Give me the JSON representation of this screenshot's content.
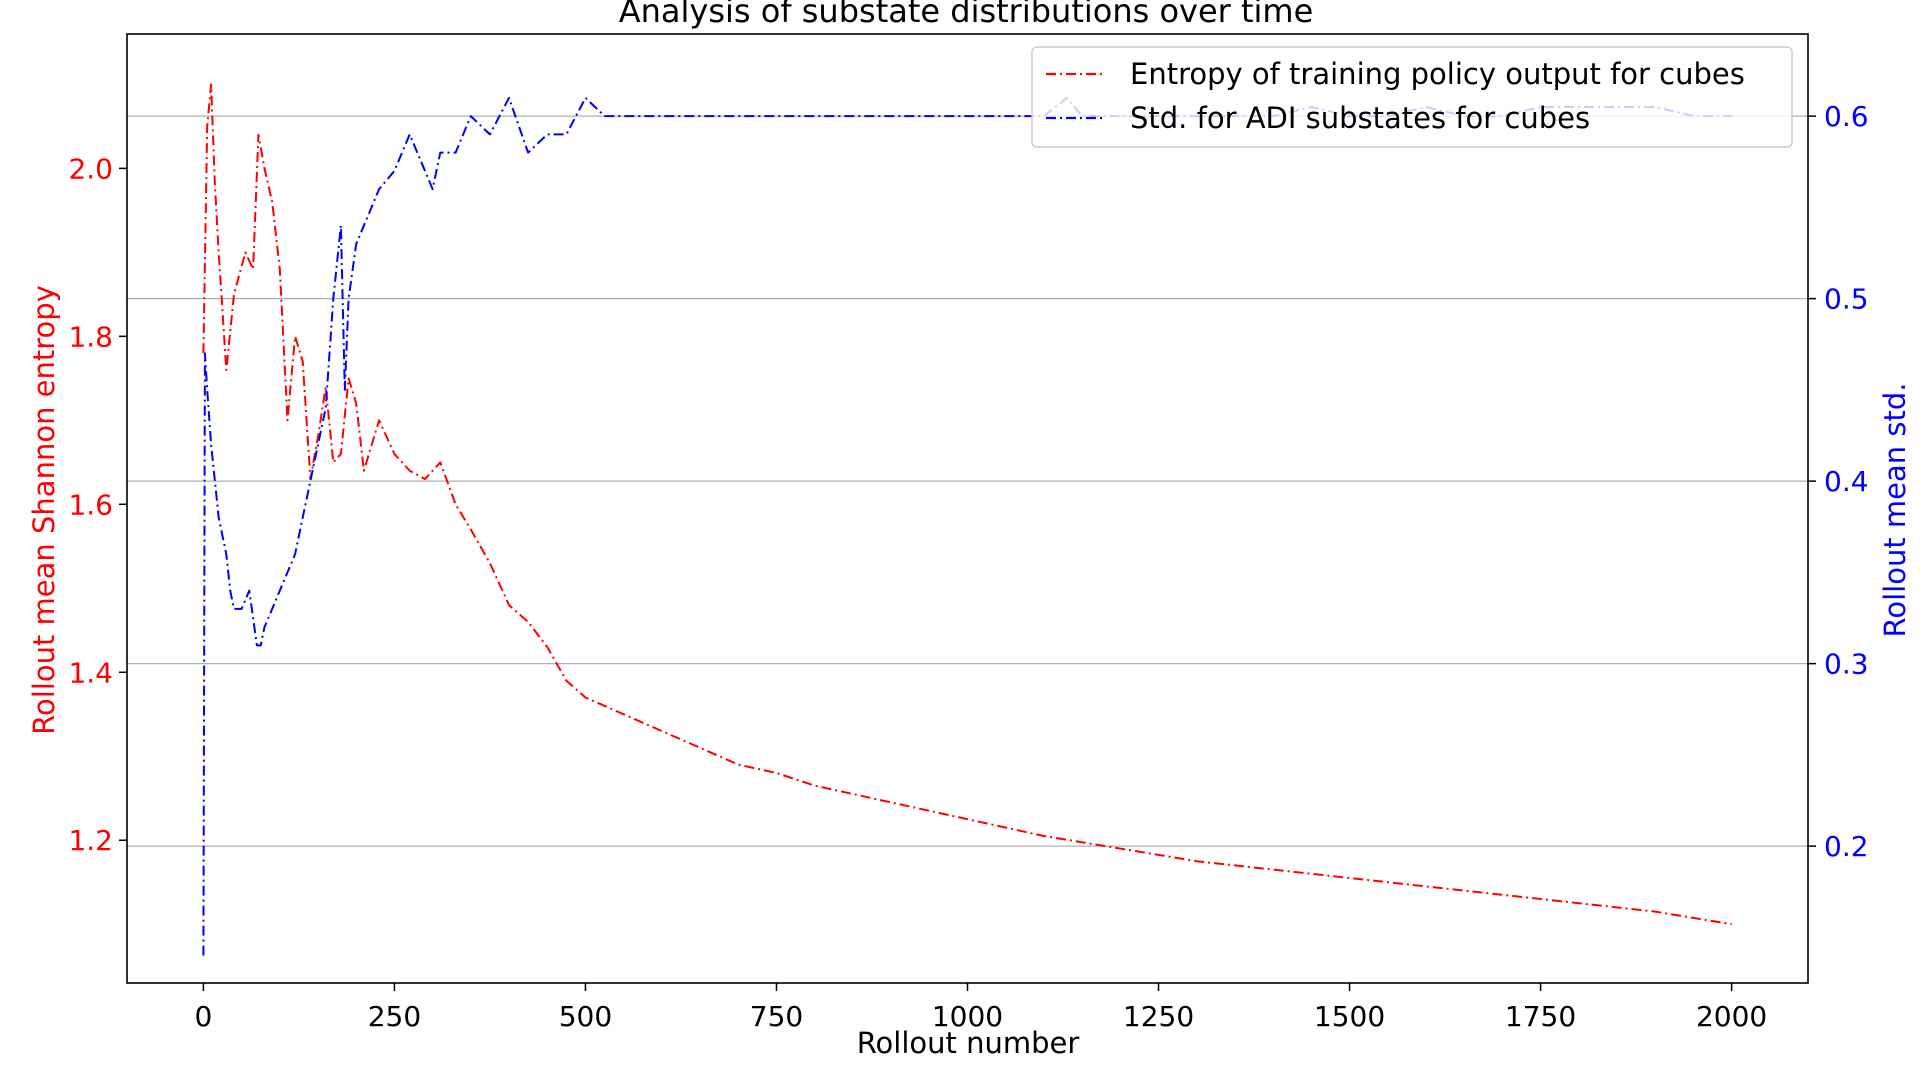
{
  "chart_data": {
    "type": "line",
    "title": "Analysis of substate distributions over time",
    "xlabel": "Rollout number",
    "ylabel_left": "Rollout mean Shannon entropy",
    "ylabel_right": "Rollout mean std.",
    "xlim": [
      -100,
      2100
    ],
    "ylim_left": [
      1.03,
      2.16
    ],
    "ylim_right": [
      0.125,
      0.645
    ],
    "x_ticks": [
      0,
      250,
      500,
      750,
      1000,
      1250,
      1500,
      1750,
      2000
    ],
    "y_ticks_left": [
      1.2,
      1.4,
      1.6,
      1.8,
      2.0
    ],
    "y_ticks_right": [
      0.2,
      0.3,
      0.4,
      0.5,
      0.6
    ],
    "grid": "horizontal at right-axis ticks",
    "legend_position": "top-right",
    "colors": {
      "left_axis": "#ff0000",
      "right_axis": "#0000ff"
    },
    "series": [
      {
        "name": "Entropy of training policy output for cubes",
        "axis": "left",
        "color": "#ff0000",
        "linestyle": "dash-dot",
        "x": [
          0,
          5,
          10,
          15,
          20,
          30,
          40,
          55,
          65,
          72,
          80,
          90,
          100,
          110,
          120,
          130,
          140,
          150,
          160,
          170,
          180,
          190,
          200,
          210,
          230,
          250,
          270,
          290,
          310,
          330,
          350,
          375,
          400,
          425,
          450,
          475,
          500,
          550,
          600,
          650,
          700,
          750,
          800,
          850,
          900,
          950,
          1000,
          1100,
          1200,
          1300,
          1400,
          1500,
          1600,
          1700,
          1800,
          1900,
          2000
        ],
        "y": [
          1.78,
          2.05,
          2.1,
          1.98,
          1.9,
          1.76,
          1.85,
          1.9,
          1.88,
          2.04,
          2.0,
          1.96,
          1.88,
          1.7,
          1.8,
          1.77,
          1.63,
          1.68,
          1.74,
          1.65,
          1.66,
          1.75,
          1.72,
          1.64,
          1.7,
          1.66,
          1.64,
          1.63,
          1.65,
          1.6,
          1.57,
          1.53,
          1.48,
          1.46,
          1.43,
          1.39,
          1.37,
          1.35,
          1.33,
          1.31,
          1.29,
          1.28,
          1.265,
          1.255,
          1.245,
          1.235,
          1.225,
          1.205,
          1.19,
          1.175,
          1.165,
          1.155,
          1.145,
          1.135,
          1.125,
          1.115,
          1.1
        ]
      },
      {
        "name": "Std. for ADI substates for cubes",
        "axis": "right",
        "color": "#0000ff",
        "linestyle": "dash-dot",
        "x": [
          0,
          2,
          5,
          10,
          15,
          20,
          25,
          30,
          35,
          40,
          50,
          60,
          70,
          75,
          80,
          90,
          100,
          110,
          120,
          130,
          140,
          150,
          160,
          170,
          175,
          180,
          185,
          190,
          200,
          210,
          220,
          230,
          250,
          270,
          290,
          300,
          310,
          330,
          350,
          375,
          400,
          425,
          450,
          475,
          500,
          525,
          550,
          600,
          650,
          700,
          750,
          800,
          850,
          900,
          950,
          1000,
          1050,
          1100,
          1130,
          1150,
          1200,
          1250,
          1300,
          1350,
          1400,
          1450,
          1500,
          1550,
          1600,
          1650,
          1700,
          1750,
          1800,
          1850,
          1900,
          1950,
          2000
        ],
        "y": [
          0.14,
          0.47,
          0.45,
          0.42,
          0.4,
          0.38,
          0.37,
          0.36,
          0.34,
          0.33,
          0.33,
          0.34,
          0.31,
          0.31,
          0.32,
          0.33,
          0.34,
          0.35,
          0.36,
          0.38,
          0.4,
          0.42,
          0.44,
          0.5,
          0.52,
          0.54,
          0.45,
          0.5,
          0.53,
          0.54,
          0.55,
          0.56,
          0.57,
          0.59,
          0.57,
          0.56,
          0.58,
          0.58,
          0.6,
          0.59,
          0.61,
          0.58,
          0.59,
          0.59,
          0.61,
          0.6,
          0.6,
          0.6,
          0.6,
          0.6,
          0.6,
          0.6,
          0.6,
          0.6,
          0.6,
          0.6,
          0.6,
          0.6,
          0.61,
          0.6,
          0.6,
          0.6,
          0.6,
          0.6,
          0.6,
          0.605,
          0.6,
          0.6,
          0.605,
          0.6,
          0.6,
          0.605,
          0.605,
          0.605,
          0.605,
          0.6,
          0.6
        ]
      }
    ]
  }
}
